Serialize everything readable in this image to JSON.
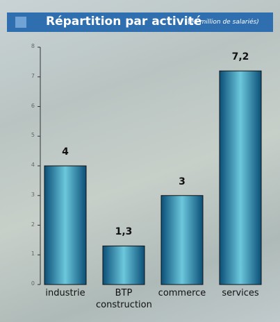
{
  "chart_data": {
    "type": "bar",
    "title": "Répartition par activité",
    "subtitle": "(en million de salariés)",
    "categories": [
      "industrie",
      "BTP construction",
      "commerce",
      "services"
    ],
    "values": [
      4,
      1.3,
      3,
      7.2
    ],
    "value_labels": [
      "4",
      "1,3",
      "3",
      "7,2"
    ],
    "color": "#1a8fb5",
    "ylim": [
      0,
      8
    ],
    "yticks": [
      0,
      1,
      2,
      3,
      4,
      5,
      6,
      7,
      8
    ]
  }
}
